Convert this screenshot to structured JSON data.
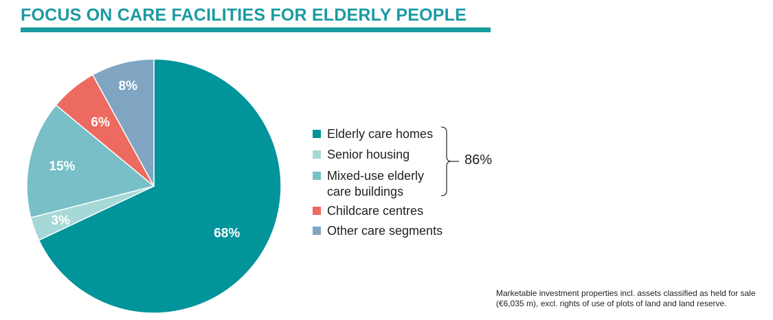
{
  "title": "FOCUS ON CARE FACILITIES FOR ELDERLY PEOPLE",
  "chart_data": {
    "type": "pie",
    "slices": [
      {
        "name": "Elderly care homes",
        "value": 68,
        "label": "68%",
        "color": "#01949a"
      },
      {
        "name": "Senior housing",
        "value": 3,
        "label": "3%",
        "color": "#a6d8d8"
      },
      {
        "name": "Mixed-use elderly\ncare buildings",
        "value": 15,
        "label": "15%",
        "color": "#78bfc8"
      },
      {
        "name": "Childcare centres",
        "value": 6,
        "label": "6%",
        "color": "#ec6a5f"
      },
      {
        "name": "Other care segments",
        "value": 8,
        "label": "8%",
        "color": "#7fa5c3"
      }
    ],
    "group_total": {
      "label": "86%",
      "covers": [
        "Elderly care homes",
        "Senior housing",
        "Mixed-use elderly\ncare buildings"
      ]
    },
    "legend_position": "right"
  },
  "footnote": "Marketable investment properties incl. assets classified as held for sale (€6,035 m), excl. rights of use of plots of land and land reserve."
}
